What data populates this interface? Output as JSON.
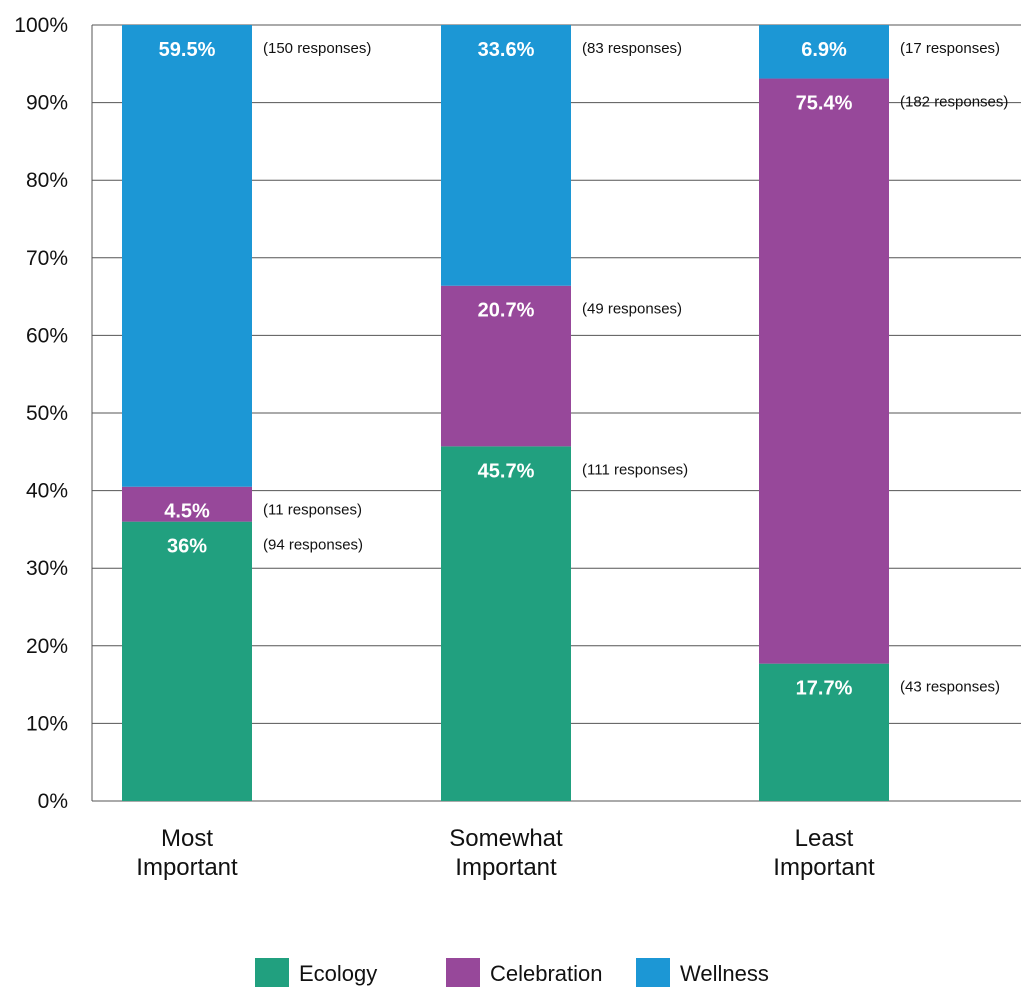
{
  "chart_data": {
    "type": "bar",
    "stacked": true,
    "categories": [
      [
        "Most",
        "Important"
      ],
      [
        "Somewhat",
        "Important"
      ],
      [
        "Least",
        "Important"
      ]
    ],
    "series": [
      {
        "name": "Ecology",
        "color": "#21a07f",
        "values": [
          36,
          45.7,
          17.7
        ],
        "labels": [
          "36%",
          "45.7%",
          "17.7%"
        ],
        "responses": [
          "(94 responses)",
          "(111 responses)",
          "(43 responses)"
        ]
      },
      {
        "name": "Celebration",
        "color": "#97489a",
        "values": [
          4.5,
          20.7,
          75.4
        ],
        "labels": [
          "4.5%",
          "20.7%",
          "75.4%"
        ],
        "responses": [
          "(11 responses)",
          "(49 responses)",
          "(182 responses)"
        ]
      },
      {
        "name": "Wellness",
        "color": "#1c97d5",
        "values": [
          59.5,
          33.6,
          6.9
        ],
        "labels": [
          "59.5%",
          "33.6%",
          "6.9%"
        ],
        "responses": [
          "(150 responses)",
          "(83 responses)",
          "(17 responses)"
        ]
      }
    ],
    "ylim": [
      0,
      100
    ],
    "yticks": [
      "0%",
      "10%",
      "20%",
      "30%",
      "40%",
      "50%",
      "60%",
      "70%",
      "80%",
      "90%",
      "100%"
    ],
    "grid": true,
    "legend": "bottom",
    "title": "",
    "xlabel": "",
    "ylabel": ""
  }
}
